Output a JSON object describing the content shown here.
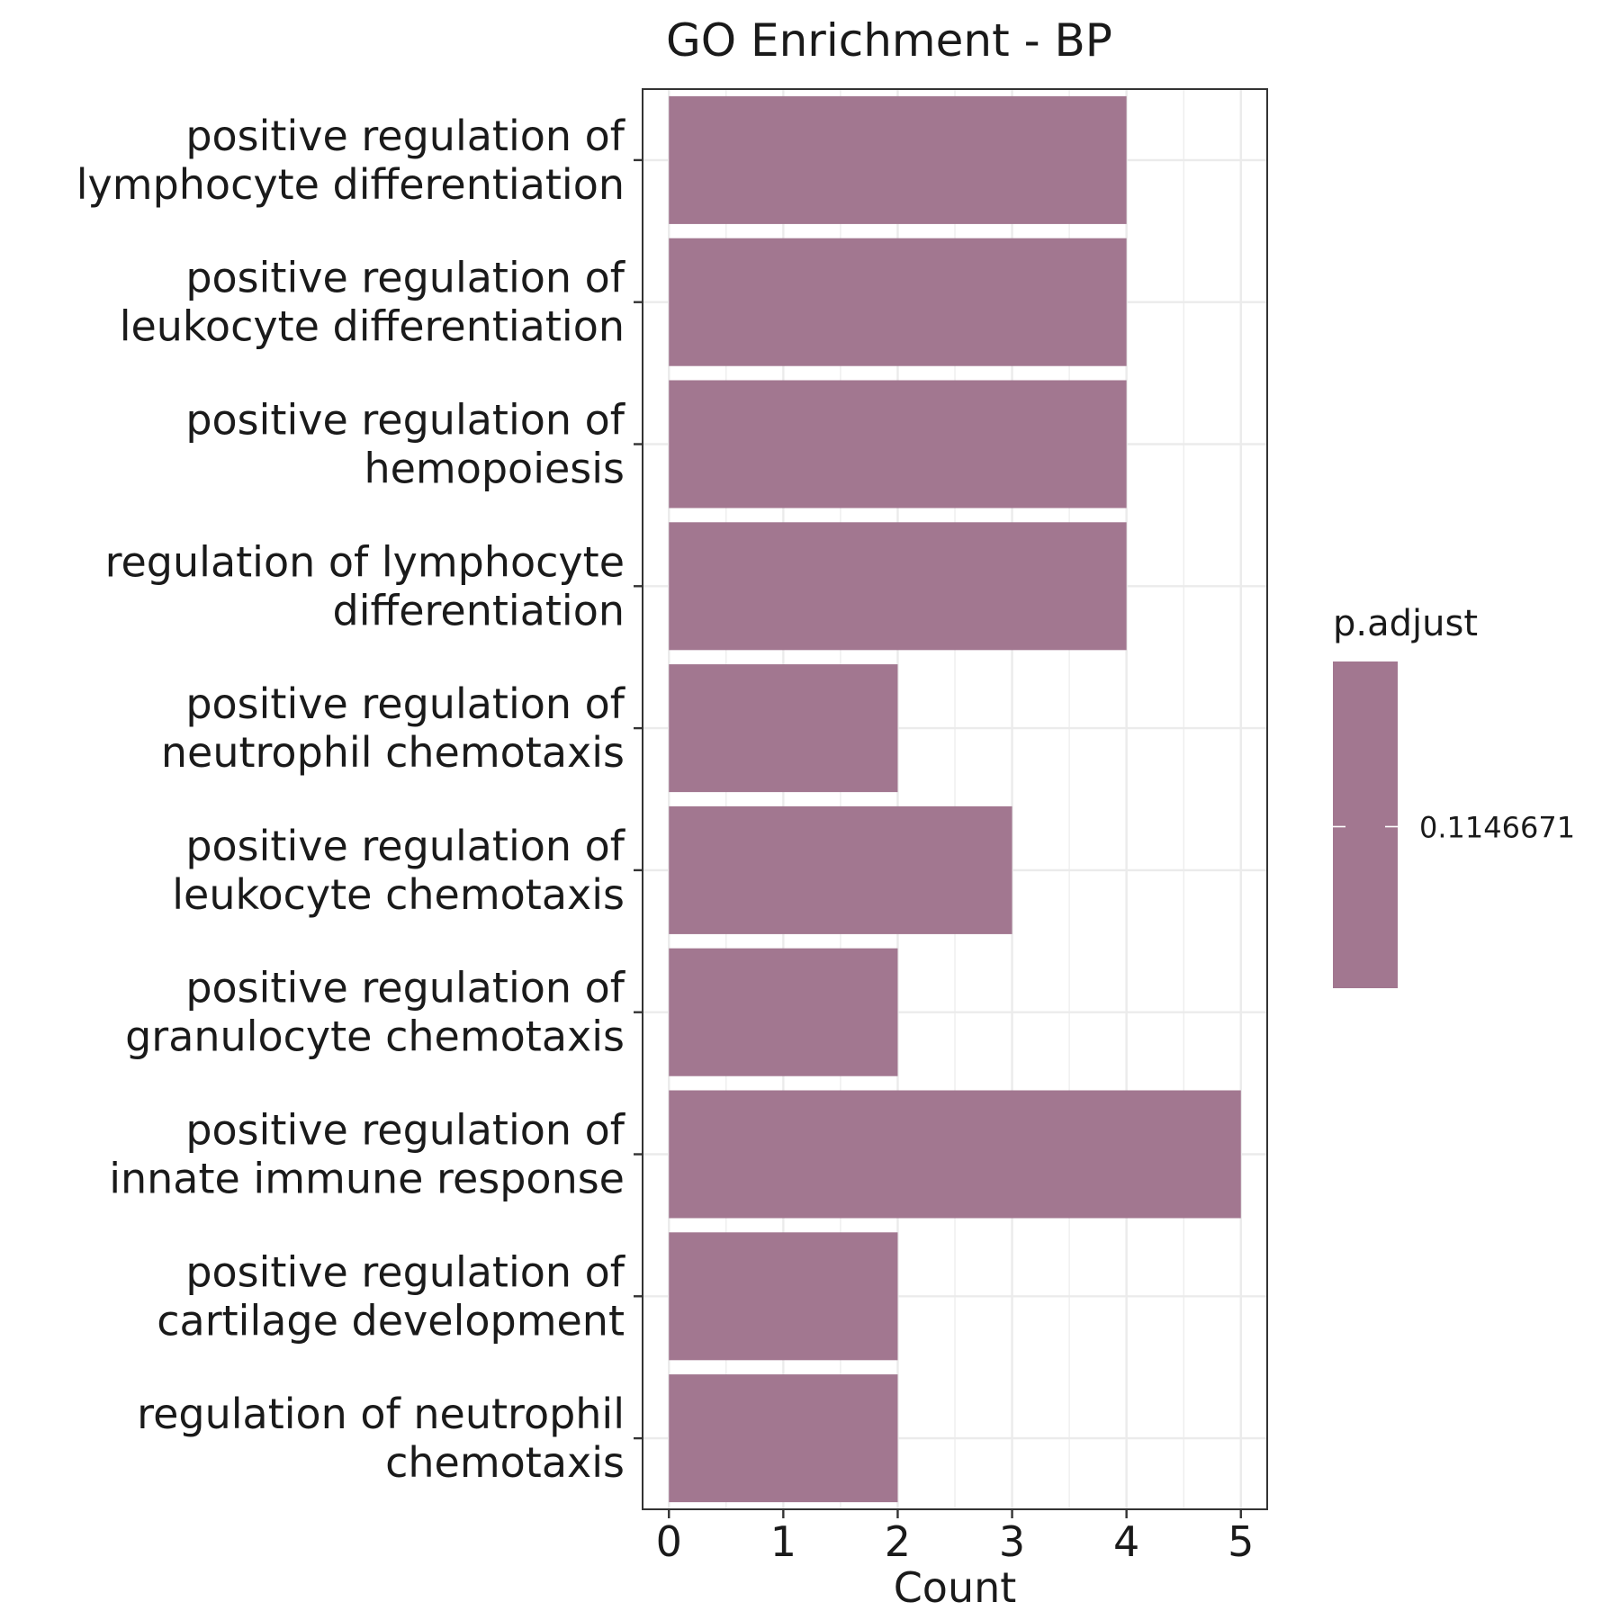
{
  "chart_data": {
    "type": "bar",
    "orientation": "horizontal",
    "title": "GO Enrichment - BP",
    "xlabel": "Count",
    "ylabel": "",
    "xlim": [
      -0.23,
      5.23
    ],
    "xticks": [
      0,
      1,
      2,
      3,
      4,
      5
    ],
    "grid": true,
    "bar_color": "#a27790",
    "categories": [
      [
        "positive regulation of",
        "lymphocyte differentiation"
      ],
      [
        "positive regulation of",
        "leukocyte differentiation"
      ],
      [
        "positive regulation of",
        "hemopoiesis"
      ],
      [
        "regulation of lymphocyte",
        "differentiation"
      ],
      [
        "positive regulation of",
        "neutrophil chemotaxis"
      ],
      [
        "positive regulation of",
        "leukocyte chemotaxis"
      ],
      [
        "positive regulation of",
        "granulocyte chemotaxis"
      ],
      [
        "positive regulation of",
        "innate immune response"
      ],
      [
        "positive regulation of",
        "cartilage development"
      ],
      [
        "regulation of neutrophil",
        "chemotaxis"
      ]
    ],
    "values": [
      4,
      4,
      4,
      4,
      2,
      3,
      2,
      5,
      2,
      2
    ],
    "legend": {
      "title": "p.adjust",
      "position": "right",
      "labels": [
        "0.1146671"
      ],
      "color": "#a27790"
    }
  }
}
